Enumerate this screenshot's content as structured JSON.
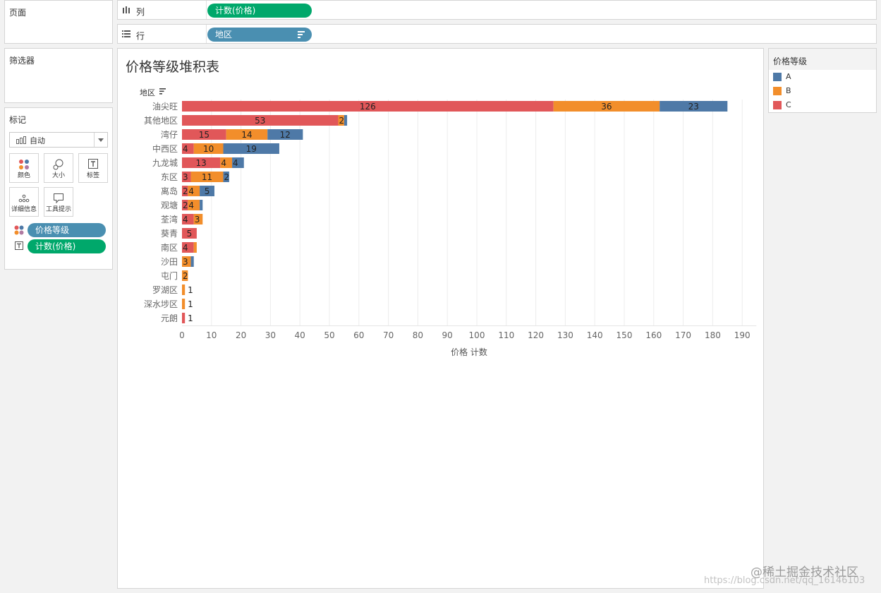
{
  "pages_card": {
    "title": "页面"
  },
  "columns_shelf": {
    "label": "列",
    "pill": "计数(价格)"
  },
  "rows_shelf": {
    "label": "行",
    "pill": "地区"
  },
  "filters_card": {
    "title": "筛选器"
  },
  "marks_card": {
    "title": "标记",
    "mark_type": "自动",
    "buttons": [
      {
        "label": "颜色",
        "icon": "color-dots-icon"
      },
      {
        "label": "大小",
        "icon": "size-icon"
      },
      {
        "label": "标签",
        "icon": "label-icon"
      },
      {
        "label": "详细信息",
        "icon": "detail-icon"
      },
      {
        "label": "工具提示",
        "icon": "tooltip-icon"
      }
    ],
    "fields": [
      {
        "label": "价格等级",
        "icon": "color-dots-icon"
      },
      {
        "label": "计数(价格)",
        "icon": "label-icon"
      }
    ]
  },
  "legend": {
    "title": "价格等级",
    "items": [
      {
        "label": "A",
        "color": "#4e79a7"
      },
      {
        "label": "B",
        "color": "#f28e2b"
      },
      {
        "label": "C",
        "color": "#e15759"
      }
    ]
  },
  "chart_data": {
    "type": "bar",
    "orientation": "horizontal",
    "stacked": true,
    "title": "价格等级堆积表",
    "row_header": "地区",
    "xlabel": "价格 计数",
    "xlim": [
      0,
      190
    ],
    "xticks": [
      0,
      10,
      20,
      30,
      40,
      50,
      60,
      70,
      80,
      90,
      100,
      110,
      120,
      130,
      140,
      150,
      160,
      170,
      180,
      190
    ],
    "grid": true,
    "categories": [
      "油尖旺",
      "其他地区",
      "湾仔",
      "中西区",
      "九龙城",
      "东区",
      "离岛",
      "观塘",
      "荃湾",
      "葵青",
      "南区",
      "沙田",
      "屯门",
      "罗湖区",
      "深水埗区",
      "元朗"
    ],
    "series": [
      {
        "name": "C",
        "color": "#e15759",
        "values": [
          126,
          53,
          15,
          4,
          13,
          3,
          2,
          2,
          4,
          5,
          4,
          0,
          0,
          0,
          0,
          1
        ]
      },
      {
        "name": "B",
        "color": "#f28e2b",
        "values": [
          36,
          2,
          14,
          10,
          4,
          11,
          4,
          4,
          3,
          0,
          1,
          3,
          2,
          1,
          1,
          0
        ]
      },
      {
        "name": "A",
        "color": "#4e79a7",
        "values": [
          23,
          1,
          12,
          19,
          4,
          2,
          5,
          1,
          0,
          0,
          0,
          1,
          0,
          0,
          0,
          0
        ]
      }
    ],
    "labels": [
      [
        "126",
        "36",
        "23"
      ],
      [
        "53",
        "2",
        ""
      ],
      [
        "15",
        "14",
        "12"
      ],
      [
        "4",
        "10",
        "19"
      ],
      [
        "13",
        "4",
        "4"
      ],
      [
        "3",
        "11",
        "2"
      ],
      [
        "2",
        "4",
        "5"
      ],
      [
        "2",
        "4",
        ""
      ],
      [
        "4",
        "3",
        ""
      ],
      [
        "5",
        "",
        ""
      ],
      [
        "4",
        "",
        ""
      ],
      [
        "",
        "3",
        ""
      ],
      [
        "",
        "2",
        ""
      ],
      [
        "",
        "1",
        ""
      ],
      [
        "",
        "1",
        ""
      ],
      [
        "1",
        "",
        ""
      ]
    ]
  },
  "watermark": {
    "line1": "@稀土掘金技术社区",
    "line2": "https://blog.csdn.net/qq_16146103"
  }
}
